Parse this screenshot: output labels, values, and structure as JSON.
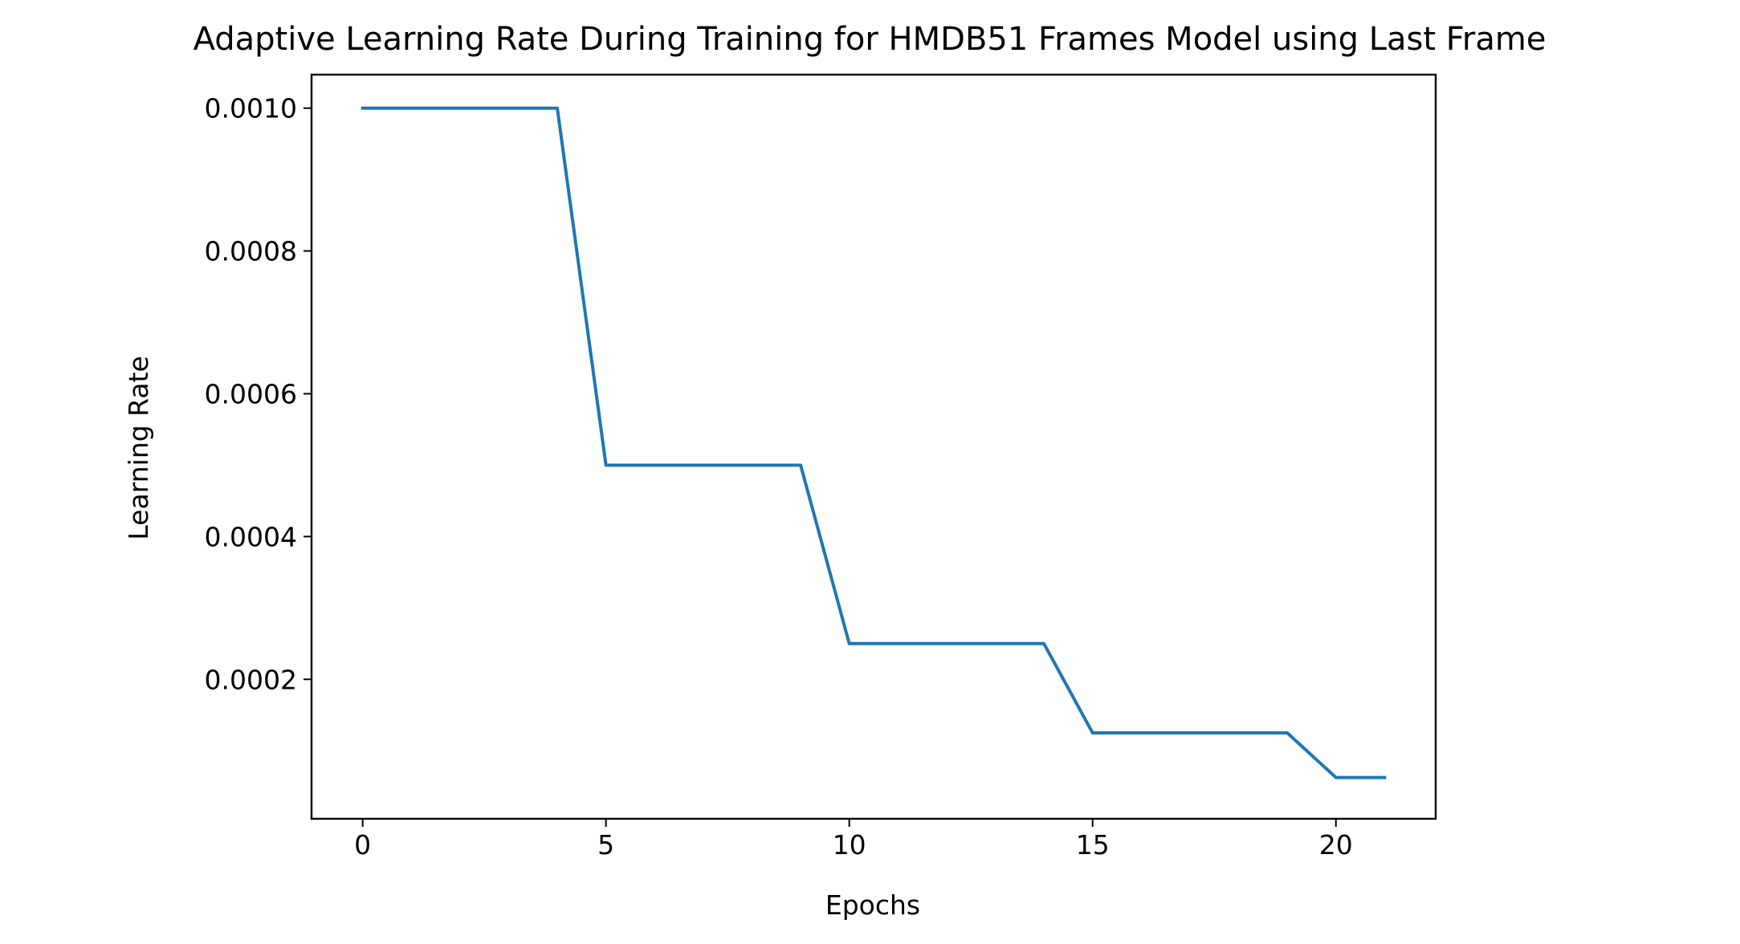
{
  "chart_data": {
    "type": "line",
    "title": "Adaptive Learning Rate During Training for HMDB51 Frames Model using Last Frame",
    "xlabel": "Epochs",
    "ylabel": "Learning Rate",
    "xlim": [
      -1.05,
      22.05
    ],
    "ylim": [
      4.7e-06,
      0.0010469
    ],
    "x_ticks": [
      0,
      5,
      10,
      15,
      20
    ],
    "x_tick_labels": [
      "0",
      "5",
      "10",
      "15",
      "20"
    ],
    "y_ticks": [
      0.0002,
      0.0004,
      0.0006,
      0.0008,
      0.001
    ],
    "y_tick_labels": [
      "0.0002",
      "0.0004",
      "0.0006",
      "0.0008",
      "0.0010"
    ],
    "grid": false,
    "series": [
      {
        "color": "#1f77b4",
        "x": [
          0,
          1,
          2,
          3,
          4,
          5,
          6,
          7,
          8,
          9,
          10,
          11,
          12,
          13,
          14,
          15,
          16,
          17,
          18,
          19,
          20,
          21
        ],
        "values": [
          0.001,
          0.001,
          0.001,
          0.001,
          0.001,
          0.0005,
          0.0005,
          0.0005,
          0.0005,
          0.0005,
          0.00025,
          0.00025,
          0.00025,
          0.00025,
          0.00025,
          0.000125,
          0.000125,
          0.000125,
          0.000125,
          0.000125,
          6.25e-05,
          6.25e-05
        ]
      }
    ]
  }
}
